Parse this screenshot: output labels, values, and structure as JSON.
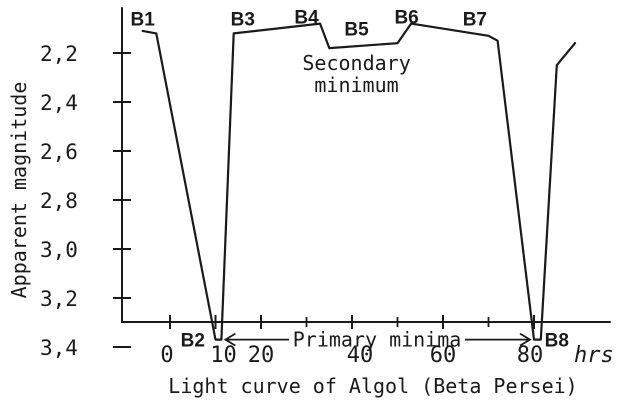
{
  "chart_data": {
    "type": "line",
    "title": "Light curve of Algol (Beta Persei)",
    "xlabel": "hrs",
    "ylabel": "Apparent magnitude",
    "x_ticks": [
      0,
      10,
      20,
      40,
      60,
      80
    ],
    "x_tick_labels": [
      "0",
      "10",
      "20",
      "40",
      "60",
      "80"
    ],
    "y_ticks": [
      2.2,
      2.4,
      2.6,
      2.8,
      3.0,
      3.2,
      3.4
    ],
    "y_tick_labels": [
      "2,2",
      "2,4",
      "2,6",
      "2,8",
      "3,0",
      "3,2",
      "3,4"
    ],
    "ylim": [
      2.1,
      3.45
    ],
    "y_inverted": true,
    "grid": false,
    "series": [
      {
        "x": [
          -6,
          -3,
          10,
          11.3,
          14,
          33,
          35,
          50,
          53,
          70,
          72,
          80,
          81.5,
          85,
          89
        ],
        "y": [
          2.11,
          2.12,
          3.37,
          3.37,
          2.12,
          2.08,
          2.18,
          2.16,
          2.08,
          2.13,
          2.15,
          3.37,
          3.37,
          2.25,
          2.16
        ]
      }
    ],
    "point_labels": [
      {
        "text": "B1",
        "x": -6,
        "y": 2.06
      },
      {
        "text": "B2",
        "x": 5,
        "y": 3.37
      },
      {
        "text": "B3",
        "x": 16,
        "y": 2.06
      },
      {
        "text": "B4",
        "x": 30,
        "y": 2.05
      },
      {
        "text": "B5",
        "x": 41,
        "y": 2.1
      },
      {
        "text": "B6",
        "x": 52,
        "y": 2.05
      },
      {
        "text": "B7",
        "x": 67,
        "y": 2.06
      },
      {
        "text": "B8",
        "x": 85,
        "y": 3.37
      }
    ],
    "annotations": [
      {
        "text": "Secondary",
        "x": 41,
        "y": 2.24
      },
      {
        "text": "minimum",
        "x": 41,
        "y": 2.33
      },
      {
        "text": "Primary minima",
        "x": 45.5,
        "y": 3.37
      }
    ]
  }
}
